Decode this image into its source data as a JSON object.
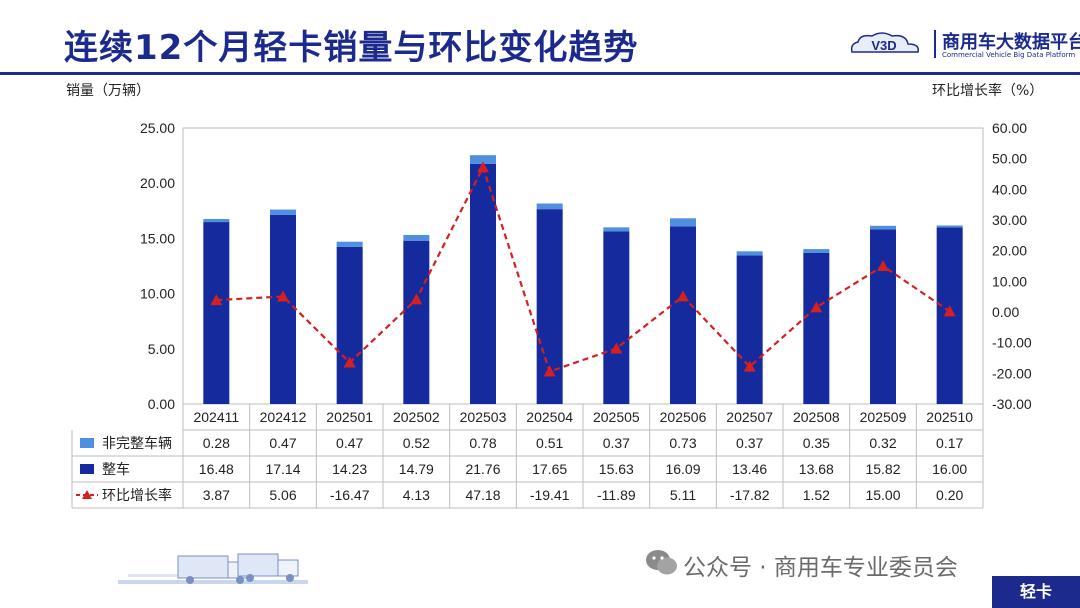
{
  "header": {
    "title": "连续12个月轻卡销量与环比变化趋势",
    "logo_badge": "V3D",
    "logo_cn": "商用车大数据平台",
    "logo_en": "Commercial Vehicle Big Data Platform"
  },
  "footer": {
    "watermark": "公众号 · 商用车专业委员会",
    "tag": "轻卡"
  },
  "colors": {
    "title": "#1b2a8c",
    "bar_base": "#152a9c",
    "bar_top": "#4f8fe0",
    "line": "#d42020"
  },
  "chart_data": {
    "type": "bar",
    "combo": "stacked bar + line (secondary axis)",
    "categories": [
      "202411",
      "202412",
      "202501",
      "202502",
      "202503",
      "202504",
      "202505",
      "202506",
      "202507",
      "202508",
      "202509",
      "202510"
    ],
    "series": [
      {
        "name": "非完整车辆",
        "kind": "bar",
        "stack": "sales",
        "axis": "left",
        "values": [
          0.28,
          0.47,
          0.47,
          0.52,
          0.78,
          0.51,
          0.37,
          0.73,
          0.37,
          0.35,
          0.32,
          0.17
        ],
        "labels": [
          "0.28",
          "0.47",
          "0.47",
          "0.52",
          "0.78",
          "0.51",
          "0.37",
          "0.73",
          "0.37",
          "0.35",
          "0.32",
          "0.17"
        ]
      },
      {
        "name": "整车",
        "kind": "bar",
        "stack": "sales",
        "axis": "left",
        "values": [
          16.48,
          17.14,
          14.23,
          14.79,
          21.76,
          17.65,
          15.63,
          16.09,
          13.46,
          13.68,
          15.82,
          16.0
        ],
        "labels": [
          "16.48",
          "17.14",
          "14.23",
          "14.79",
          "21.76",
          "17.65",
          "15.63",
          "16.09",
          "13.46",
          "13.68",
          "15.82",
          "16.00"
        ]
      },
      {
        "name": "环比增长率",
        "kind": "line",
        "axis": "right",
        "values": [
          3.87,
          5.06,
          -16.47,
          4.13,
          47.18,
          -19.41,
          -11.89,
          5.11,
          -17.82,
          1.52,
          15.0,
          0.2
        ],
        "labels": [
          "3.87",
          "5.06",
          "-16.47",
          "4.13",
          "47.18",
          "-19.41",
          "-11.89",
          "5.11",
          "-17.82",
          "1.52",
          "15.00",
          "0.20"
        ]
      }
    ],
    "ylabel": "销量（万辆）",
    "y2label": "环比增长率（%）",
    "ylim": [
      0,
      25
    ],
    "yticks": [
      "0.00",
      "5.00",
      "10.00",
      "15.00",
      "20.00",
      "25.00"
    ],
    "y2lim": [
      -30,
      60
    ],
    "y2ticks": [
      "-30.00",
      "-20.00",
      "-10.00",
      "0.00",
      "10.00",
      "20.00",
      "30.00",
      "40.00",
      "50.00",
      "60.00"
    ],
    "grid": false,
    "legend": "data-table"
  }
}
